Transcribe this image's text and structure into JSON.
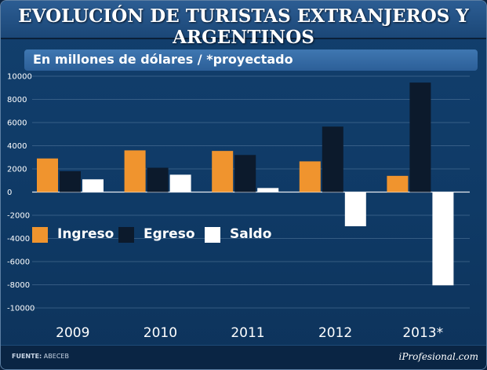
{
  "header": {
    "title": "EVOLUCIÓN DE TURISTAS EXTRANJEROS Y ARGENTINOS"
  },
  "subtitle": "En millones de dólares / *proyectado",
  "footer": {
    "source_key": "FUENTE:",
    "source_value": "ABECEB",
    "brand": "iProfesional.com"
  },
  "colors": {
    "ingreso": "#f0942e",
    "egreso": "#0c1a2c",
    "saldo": "#ffffff",
    "background": "#0f3a66",
    "gridline": "#6f8fb3"
  },
  "chart_data": {
    "type": "bar",
    "categories": [
      "2009",
      "2010",
      "2011",
      "2012",
      "2013*"
    ],
    "series": [
      {
        "name": "Ingreso",
        "values": [
          2900,
          3600,
          3550,
          2650,
          1400
        ]
      },
      {
        "name": "Egreso",
        "values": [
          1800,
          2100,
          3200,
          5650,
          9450
        ]
      },
      {
        "name": "Saldo",
        "values": [
          1100,
          1500,
          350,
          -2950,
          -8050
        ]
      }
    ],
    "ylim": [
      -10000,
      10000
    ],
    "yticks": [
      "10000",
      "8000",
      "6000",
      "4000",
      "2000",
      "0",
      "-2000",
      "-4000",
      "-6000",
      "-8000",
      "-10000"
    ],
    "grid": true,
    "legend": "left"
  }
}
